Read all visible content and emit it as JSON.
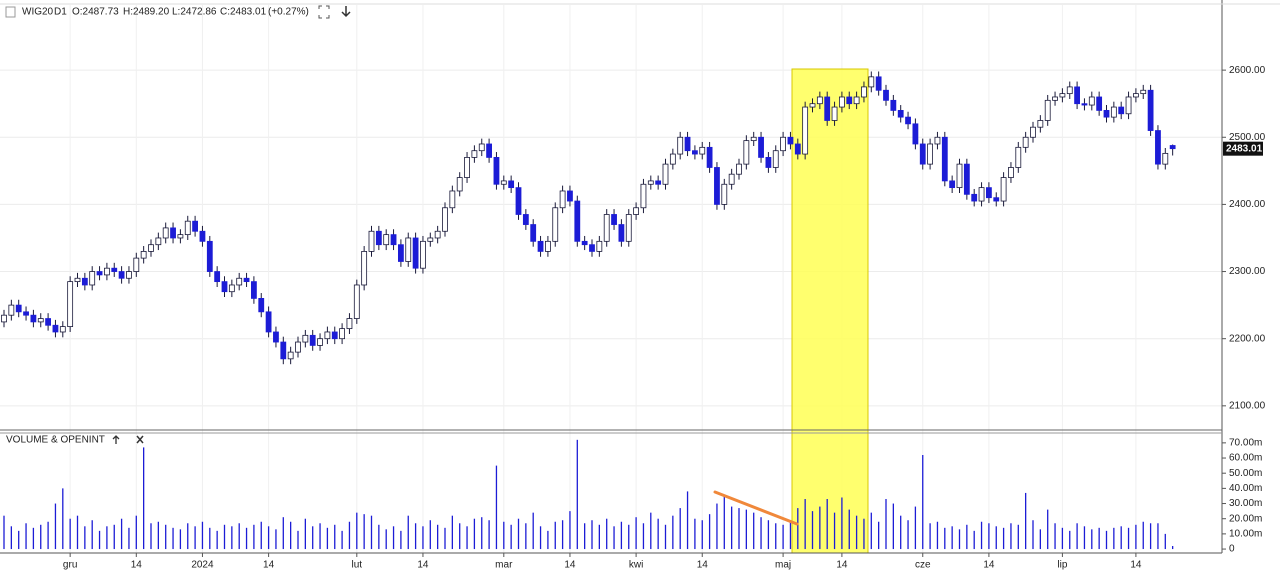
{
  "chart_data": {
    "type": "candlestick",
    "header": {
      "symbol": "WIG20",
      "timeframe": "D1",
      "open": "O:2487.73",
      "high": "H:2489.20",
      "low": "L:2472.86",
      "close": "C:2483.01",
      "change": "(+0.27%)"
    },
    "categories": [
      null,
      null,
      null,
      null,
      null,
      null,
      null,
      null,
      null,
      "gru",
      null,
      null,
      null,
      null,
      null,
      null,
      null,
      null,
      "14",
      null,
      null,
      null,
      null,
      null,
      null,
      null,
      null,
      "2024",
      null,
      null,
      null,
      null,
      null,
      null,
      null,
      null,
      "14",
      null,
      null,
      null,
      null,
      null,
      null,
      null,
      null,
      null,
      null,
      null,
      "lut",
      null,
      null,
      null,
      null,
      null,
      null,
      null,
      null,
      "14",
      null,
      null,
      null,
      null,
      null,
      null,
      null,
      null,
      null,
      null,
      "mar",
      null,
      null,
      null,
      null,
      null,
      null,
      null,
      null,
      "14",
      null,
      null,
      null,
      null,
      null,
      null,
      null,
      null,
      "kwi",
      null,
      null,
      null,
      null,
      null,
      null,
      null,
      null,
      "14",
      null,
      null,
      null,
      null,
      null,
      null,
      null,
      null,
      null,
      null,
      "maj",
      null,
      null,
      null,
      null,
      null,
      null,
      null,
      "14",
      null,
      null,
      null,
      null,
      null,
      null,
      null,
      null,
      null,
      null,
      "cze",
      null,
      null,
      null,
      null,
      null,
      null,
      null,
      null,
      "14",
      null,
      null,
      null,
      null,
      null,
      null,
      null,
      null,
      null,
      "lip",
      null,
      null,
      null,
      null,
      null,
      null,
      null,
      null,
      null,
      "14",
      null,
      null,
      null,
      null,
      null
    ],
    "ohlc": [
      [
        2225,
        2243,
        2217,
        2235
      ],
      [
        2235,
        2258,
        2227,
        2250
      ],
      [
        2250,
        2258,
        2232,
        2240
      ],
      [
        2240,
        2248,
        2227,
        2235
      ],
      [
        2235,
        2243,
        2217,
        2225
      ],
      [
        2225,
        2238,
        2217,
        2230
      ],
      [
        2230,
        2238,
        2212,
        2220
      ],
      [
        2220,
        2228,
        2202,
        2210
      ],
      [
        2210,
        2226,
        2202,
        2218
      ],
      [
        2218,
        2293,
        2210,
        2285
      ],
      [
        2285,
        2298,
        2277,
        2290
      ],
      [
        2290,
        2298,
        2272,
        2280
      ],
      [
        2280,
        2308,
        2272,
        2300
      ],
      [
        2300,
        2308,
        2287,
        2295
      ],
      [
        2295,
        2313,
        2287,
        2305
      ],
      [
        2305,
        2313,
        2292,
        2300
      ],
      [
        2300,
        2308,
        2282,
        2290
      ],
      [
        2290,
        2308,
        2282,
        2300
      ],
      [
        2300,
        2328,
        2292,
        2320
      ],
      [
        2320,
        2338,
        2312,
        2330
      ],
      [
        2330,
        2348,
        2322,
        2340
      ],
      [
        2340,
        2358,
        2332,
        2350
      ],
      [
        2350,
        2373,
        2342,
        2365
      ],
      [
        2365,
        2373,
        2342,
        2350
      ],
      [
        2350,
        2363,
        2342,
        2355
      ],
      [
        2355,
        2383,
        2347,
        2375
      ],
      [
        2375,
        2383,
        2352,
        2360
      ],
      [
        2360,
        2368,
        2337,
        2345
      ],
      [
        2345,
        2353,
        2292,
        2300
      ],
      [
        2300,
        2308,
        2277,
        2285
      ],
      [
        2285,
        2293,
        2262,
        2270
      ],
      [
        2270,
        2288,
        2262,
        2280
      ],
      [
        2280,
        2298,
        2272,
        2290
      ],
      [
        2290,
        2298,
        2277,
        2285
      ],
      [
        2285,
        2293,
        2252,
        2260
      ],
      [
        2260,
        2268,
        2232,
        2240
      ],
      [
        2240,
        2248,
        2202,
        2210
      ],
      [
        2210,
        2218,
        2187,
        2195
      ],
      [
        2195,
        2203,
        2162,
        2170
      ],
      [
        2170,
        2188,
        2162,
        2180
      ],
      [
        2180,
        2203,
        2172,
        2195
      ],
      [
        2195,
        2213,
        2187,
        2205
      ],
      [
        2205,
        2213,
        2182,
        2190
      ],
      [
        2190,
        2208,
        2182,
        2200
      ],
      [
        2200,
        2218,
        2192,
        2210
      ],
      [
        2210,
        2218,
        2192,
        2200
      ],
      [
        2200,
        2223,
        2192,
        2215
      ],
      [
        2215,
        2238,
        2207,
        2230
      ],
      [
        2230,
        2288,
        2222,
        2280
      ],
      [
        2280,
        2338,
        2272,
        2330
      ],
      [
        2330,
        2368,
        2322,
        2360
      ],
      [
        2360,
        2368,
        2332,
        2340
      ],
      [
        2340,
        2363,
        2332,
        2355
      ],
      [
        2355,
        2363,
        2332,
        2340
      ],
      [
        2340,
        2348,
        2307,
        2315
      ],
      [
        2315,
        2358,
        2307,
        2350
      ],
      [
        2350,
        2358,
        2297,
        2305
      ],
      [
        2305,
        2353,
        2297,
        2345
      ],
      [
        2345,
        2358,
        2337,
        2350
      ],
      [
        2350,
        2368,
        2342,
        2360
      ],
      [
        2360,
        2403,
        2352,
        2395
      ],
      [
        2395,
        2428,
        2387,
        2420
      ],
      [
        2420,
        2448,
        2412,
        2440
      ],
      [
        2440,
        2478,
        2432,
        2470
      ],
      [
        2470,
        2488,
        2462,
        2480
      ],
      [
        2480,
        2498,
        2472,
        2490
      ],
      [
        2490,
        2498,
        2462,
        2470
      ],
      [
        2470,
        2478,
        2422,
        2430
      ],
      [
        2430,
        2443,
        2422,
        2435
      ],
      [
        2435,
        2443,
        2417,
        2425
      ],
      [
        2425,
        2433,
        2377,
        2385
      ],
      [
        2385,
        2393,
        2362,
        2370
      ],
      [
        2370,
        2378,
        2337,
        2345
      ],
      [
        2345,
        2353,
        2322,
        2330
      ],
      [
        2330,
        2353,
        2322,
        2345
      ],
      [
        2345,
        2403,
        2337,
        2395
      ],
      [
        2395,
        2428,
        2387,
        2420
      ],
      [
        2420,
        2428,
        2397,
        2405
      ],
      [
        2405,
        2413,
        2337,
        2345
      ],
      [
        2345,
        2353,
        2332,
        2340
      ],
      [
        2340,
        2348,
        2322,
        2330
      ],
      [
        2330,
        2353,
        2322,
        2345
      ],
      [
        2345,
        2393,
        2337,
        2385
      ],
      [
        2385,
        2393,
        2362,
        2370
      ],
      [
        2370,
        2378,
        2337,
        2345
      ],
      [
        2345,
        2393,
        2337,
        2385
      ],
      [
        2385,
        2403,
        2377,
        2395
      ],
      [
        2395,
        2438,
        2387,
        2430
      ],
      [
        2430,
        2443,
        2422,
        2435
      ],
      [
        2435,
        2443,
        2422,
        2430
      ],
      [
        2430,
        2468,
        2422,
        2460
      ],
      [
        2460,
        2483,
        2452,
        2475
      ],
      [
        2475,
        2508,
        2467,
        2500
      ],
      [
        2500,
        2508,
        2472,
        2480
      ],
      [
        2480,
        2488,
        2467,
        2475
      ],
      [
        2475,
        2493,
        2467,
        2485
      ],
      [
        2485,
        2493,
        2447,
        2455
      ],
      [
        2455,
        2463,
        2392,
        2400
      ],
      [
        2400,
        2438,
        2392,
        2430
      ],
      [
        2430,
        2453,
        2422,
        2445
      ],
      [
        2445,
        2468,
        2437,
        2460
      ],
      [
        2460,
        2503,
        2452,
        2495
      ],
      [
        2495,
        2508,
        2487,
        2500
      ],
      [
        2500,
        2508,
        2462,
        2470
      ],
      [
        2470,
        2478,
        2447,
        2455
      ],
      [
        2455,
        2488,
        2447,
        2480
      ],
      [
        2480,
        2508,
        2472,
        2500
      ],
      [
        2500,
        2508,
        2482,
        2490
      ],
      [
        2490,
        2498,
        2467,
        2475
      ],
      [
        2475,
        2553,
        2467,
        2545
      ],
      [
        2545,
        2558,
        2537,
        2550
      ],
      [
        2550,
        2568,
        2542,
        2560
      ],
      [
        2560,
        2568,
        2517,
        2525
      ],
      [
        2525,
        2553,
        2517,
        2545
      ],
      [
        2545,
        2568,
        2537,
        2560
      ],
      [
        2560,
        2568,
        2542,
        2550
      ],
      [
        2550,
        2568,
        2542,
        2560
      ],
      [
        2560,
        2583,
        2552,
        2575
      ],
      [
        2575,
        2598,
        2567,
        2590
      ],
      [
        2590,
        2598,
        2562,
        2570
      ],
      [
        2570,
        2578,
        2547,
        2555
      ],
      [
        2555,
        2563,
        2532,
        2540
      ],
      [
        2540,
        2548,
        2522,
        2530
      ],
      [
        2530,
        2538,
        2512,
        2520
      ],
      [
        2520,
        2528,
        2482,
        2490
      ],
      [
        2490,
        2498,
        2452,
        2460
      ],
      [
        2460,
        2498,
        2452,
        2490
      ],
      [
        2490,
        2508,
        2482,
        2500
      ],
      [
        2500,
        2508,
        2427,
        2435
      ],
      [
        2435,
        2443,
        2417,
        2425
      ],
      [
        2425,
        2468,
        2417,
        2460
      ],
      [
        2460,
        2468,
        2407,
        2415
      ],
      [
        2415,
        2423,
        2397,
        2405
      ],
      [
        2405,
        2433,
        2397,
        2425
      ],
      [
        2425,
        2433,
        2402,
        2410
      ],
      [
        2410,
        2418,
        2397,
        2405
      ],
      [
        2405,
        2448,
        2397,
        2440
      ],
      [
        2440,
        2463,
        2432,
        2455
      ],
      [
        2455,
        2493,
        2447,
        2485
      ],
      [
        2485,
        2508,
        2477,
        2500
      ],
      [
        2500,
        2523,
        2492,
        2515
      ],
      [
        2515,
        2533,
        2507,
        2525
      ],
      [
        2525,
        2563,
        2517,
        2555
      ],
      [
        2555,
        2568,
        2547,
        2560
      ],
      [
        2560,
        2573,
        2552,
        2565
      ],
      [
        2565,
        2583,
        2557,
        2575
      ],
      [
        2575,
        2583,
        2542,
        2550
      ],
      [
        2550,
        2558,
        2540,
        2548
      ],
      [
        2548,
        2568,
        2540,
        2560
      ],
      [
        2560,
        2568,
        2532,
        2540
      ],
      [
        2540,
        2548,
        2522,
        2530
      ],
      [
        2530,
        2553,
        2522,
        2545
      ],
      [
        2545,
        2553,
        2527,
        2535
      ],
      [
        2535,
        2568,
        2527,
        2560
      ],
      [
        2560,
        2573,
        2552,
        2565
      ],
      [
        2565,
        2578,
        2557,
        2570
      ],
      [
        2570,
        2578,
        2502,
        2510
      ],
      [
        2510,
        2518,
        2452,
        2460
      ],
      [
        2460,
        2484,
        2452,
        2476
      ],
      [
        2487.73,
        2489.2,
        2472.86,
        2483.01
      ]
    ],
    "colors": {
      "up": "#ffffff",
      "down": "#1c1cd6",
      "wick": "#1a1a3a"
    },
    "ylim": [
      2064,
      2697
    ],
    "yticks": [
      {
        "value": 2100,
        "label": "2100.00"
      },
      {
        "value": 2200,
        "label": "2200.00"
      },
      {
        "value": 2300,
        "label": "2300.00"
      },
      {
        "value": 2400,
        "label": "2400.00"
      },
      {
        "value": 2500,
        "label": "2500.00"
      },
      {
        "value": 2600,
        "label": "2600.00"
      }
    ],
    "grid": true,
    "volume": {
      "title": "VOLUME & OPENINT",
      "color": "#1c1cd6",
      "values": [
        22000000.0,
        15000000.0,
        12000000.0,
        17000000.0,
        14000000.0,
        16000000.0,
        18000000.0,
        30000000.0,
        40000000.0,
        20000000.0,
        22000000.0,
        15000000.0,
        19000000.0,
        12000000.0,
        15000000.0,
        16000000.0,
        20000000.0,
        14000000.0,
        22000000.0,
        67000000.0,
        17000000.0,
        18000000.0,
        16000000.0,
        14000000.0,
        13000000.0,
        17000000.0,
        15000000.0,
        18000000.0,
        14000000.0,
        12000000.0,
        16000000.0,
        15000000.0,
        17000000.0,
        14000000.0,
        16000000.0,
        18000000.0,
        15000000.0,
        13000000.0,
        21000000.0,
        18000000.0,
        12000000.0,
        20000000.0,
        15000000.0,
        17000000.0,
        14000000.0,
        16000000.0,
        12000000.0,
        18000000.0,
        24000000.0,
        23000000.0,
        22000000.0,
        16000000.0,
        13000000.0,
        15000000.0,
        12000000.0,
        22000000.0,
        17000000.0,
        15000000.0,
        19000000.0,
        16000000.0,
        14000000.0,
        22000000.0,
        17000000.0,
        15000000.0,
        20000000.0,
        21000000.0,
        19000000.0,
        55000000.0,
        18000000.0,
        16000000.0,
        20000000.0,
        17000000.0,
        24000000.0,
        15000000.0,
        12000000.0,
        18000000.0,
        19000000.0,
        25000000.0,
        72000000.0,
        17000000.0,
        19000000.0,
        16000000.0,
        20000000.0,
        15000000.0,
        18000000.0,
        16000000.0,
        21000000.0,
        17000000.0,
        24000000.0,
        20000000.0,
        16000000.0,
        22000000.0,
        27000000.0,
        38000000.0,
        20000000.0,
        19000000.0,
        23000000.0,
        30000000.0,
        35000000.0,
        28000000.0,
        27000000.0,
        26000000.0,
        24000000.0,
        21000000.0,
        19000000.0,
        17000000.0,
        16000000.0,
        18000000.0,
        27000000.0,
        33000000.0,
        25000000.0,
        28000000.0,
        33000000.0,
        24000000.0,
        34000000.0,
        26000000.0,
        22000000.0,
        20000000.0,
        24000000.0,
        18000000.0,
        33000000.0,
        30000000.0,
        22000000.0,
        19000000.0,
        28000000.0,
        62000000.0,
        17000000.0,
        18000000.0,
        14000000.0,
        15000000.0,
        13000000.0,
        16000000.0,
        12000000.0,
        18000000.0,
        17000000.0,
        15000000.0,
        14000000.0,
        17000000.0,
        16000000.0,
        37000000.0,
        19000000.0,
        13000000.0,
        26000000.0,
        17000000.0,
        14000000.0,
        12000000.0,
        17000000.0,
        15000000.0,
        13000000.0,
        14000000.0,
        12000000.0,
        14000000.0,
        15000000.0,
        14000000.0,
        16000000.0,
        18000000.0,
        17000000.0,
        17000000.0,
        10000000.0,
        2000000.0
      ],
      "ylim": [
        -2600000.0,
        76500000.0
      ],
      "yticks": [
        0,
        {
          "value": 10000000.0,
          "label": "10.00m"
        },
        {
          "value": 20000000.0,
          "label": "20.00m"
        },
        {
          "value": 30000000.0,
          "label": "30.00m"
        },
        {
          "value": 40000000.0,
          "label": "40.00m"
        },
        {
          "value": 50000000.0,
          "label": "50.00m"
        },
        {
          "value": 60000000.0,
          "label": "60.00m"
        },
        {
          "value": 70000000.0,
          "label": "70.00m"
        }
      ]
    }
  }
}
